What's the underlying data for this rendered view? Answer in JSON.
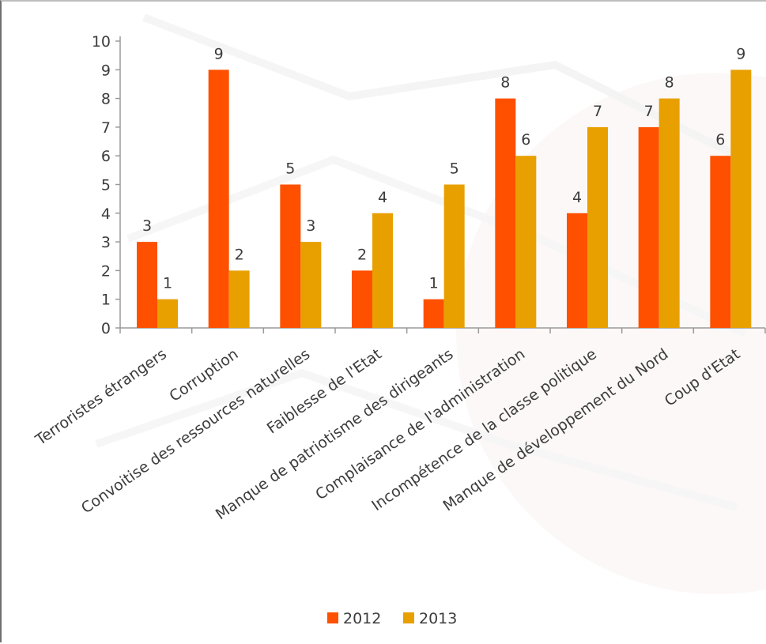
{
  "chart_data": {
    "type": "bar",
    "categories": [
      "Terroristes étrangers",
      "Corruption",
      "Convoitise des ressources naturelles",
      "Faiblesse de l'Etat",
      "Manque de patriotisme des dirigeants",
      "Complaisance de l'administration",
      "Incompétence de la classe politique",
      "Manque de développement du Nord",
      "Coup d'Etat"
    ],
    "series": [
      {
        "name": "2012",
        "color": "#ff5000",
        "values": [
          3,
          9,
          5,
          2,
          1,
          8,
          4,
          7,
          6
        ]
      },
      {
        "name": "2013",
        "color": "#e8a000",
        "values": [
          1,
          2,
          3,
          4,
          5,
          6,
          7,
          8,
          9
        ]
      }
    ],
    "ylim": [
      0,
      10
    ],
    "yticks": [
      "0",
      "1",
      "2",
      "3",
      "4",
      "5",
      "6",
      "7",
      "8",
      "9",
      "10"
    ],
    "grid": false,
    "legend": "bottom",
    "data_labels": true
  }
}
